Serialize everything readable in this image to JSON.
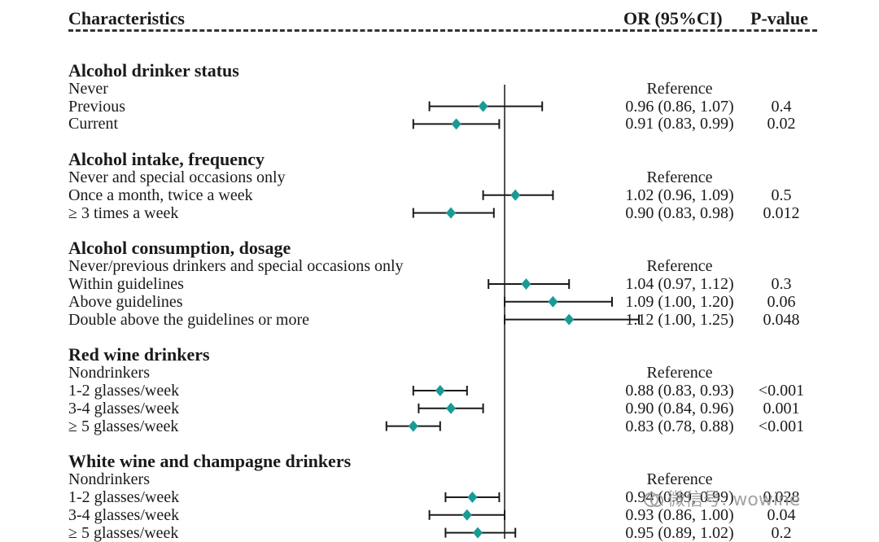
{
  "header": {
    "characteristics": "Characteristics",
    "or_ci": "OR (95%CI)",
    "pvalue": "P-value"
  },
  "watermark": "微信号: wowine",
  "chart_data": {
    "type": "forest",
    "reference_line": 1.0,
    "rows": [
      {
        "label": "Alcohol drinker status",
        "section": true
      },
      {
        "label": "Never",
        "or_text": "Reference",
        "p": ""
      },
      {
        "label": "Previous",
        "or": 0.96,
        "lo": 0.86,
        "hi": 1.07,
        "or_text": "0.96 (0.86, 1.07)",
        "p": "0.4"
      },
      {
        "label": "Current",
        "or": 0.91,
        "lo": 0.83,
        "hi": 0.99,
        "or_text": "0.91 (0.83, 0.99)",
        "p": "0.02"
      },
      {
        "label": "Alcohol intake, frequency",
        "section": true
      },
      {
        "label": "Never and special occasions only",
        "or_text": "Reference",
        "p": ""
      },
      {
        "label": "Once a month, twice a week",
        "or": 1.02,
        "lo": 0.96,
        "hi": 1.09,
        "or_text": "1.02 (0.96, 1.09)",
        "p": "0.5"
      },
      {
        "label": "≥ 3 times a week",
        "or": 0.9,
        "lo": 0.83,
        "hi": 0.98,
        "or_text": "0.90 (0.83, 0.98)",
        "p": "0.012"
      },
      {
        "label": "Alcohol consumption, dosage",
        "section": true
      },
      {
        "label": "Never/previous drinkers and special occasions only",
        "or_text": "Reference",
        "p": ""
      },
      {
        "label": "Within guidelines",
        "or": 1.04,
        "lo": 0.97,
        "hi": 1.12,
        "or_text": "1.04 (0.97, 1.12)",
        "p": "0.3"
      },
      {
        "label": "Above guidelines",
        "or": 1.09,
        "lo": 1.0,
        "hi": 1.2,
        "or_text": "1.09 (1.00, 1.20)",
        "p": "0.06"
      },
      {
        "label": "Double above the guidelines or more",
        "or": 1.12,
        "lo": 1.0,
        "hi": 1.25,
        "or_text": "1.12 (1.00, 1.25)",
        "p": "0.048"
      },
      {
        "label": "Red wine drinkers",
        "section": true
      },
      {
        "label": "Nondrinkers",
        "or_text": "Reference",
        "p": ""
      },
      {
        "label": "1-2 glasses/week",
        "or": 0.88,
        "lo": 0.83,
        "hi": 0.93,
        "or_text": "0.88 (0.83, 0.93)",
        "p": "<0.001"
      },
      {
        "label": "3-4 glasses/week",
        "or": 0.9,
        "lo": 0.84,
        "hi": 0.96,
        "or_text": "0.90 (0.84, 0.96)",
        "p": "0.001"
      },
      {
        "label": "≥ 5 glasses/week",
        "or": 0.83,
        "lo": 0.78,
        "hi": 0.88,
        "or_text": "0.83 (0.78, 0.88)",
        "p": "<0.001"
      },
      {
        "label": "White wine and champagne drinkers",
        "section": true
      },
      {
        "label": "Nondrinkers",
        "or_text": "Reference",
        "p": ""
      },
      {
        "label": "1-2 glasses/week",
        "or": 0.94,
        "lo": 0.89,
        "hi": 0.99,
        "or_text": "0.94 (0.89, 0.99)",
        "p": "0.028"
      },
      {
        "label": "3-4 glasses/week",
        "or": 0.93,
        "lo": 0.86,
        "hi": 1.0,
        "or_text": "0.93 (0.86, 1.00)",
        "p": "0.04"
      },
      {
        "label": "≥ 5 glasses/week",
        "or": 0.95,
        "lo": 0.89,
        "hi": 1.02,
        "or_text": "0.95 (0.89, 1.02)",
        "p": "0.2"
      }
    ],
    "colors": {
      "marker": "#1a9a96",
      "lines": "#1a1a1a"
    }
  }
}
